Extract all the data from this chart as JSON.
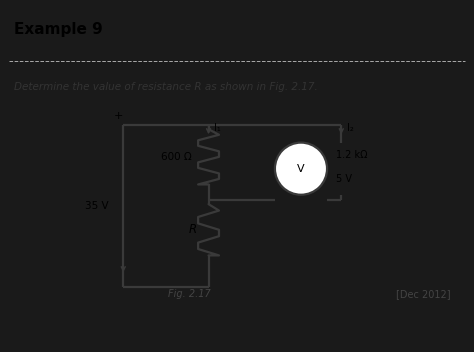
{
  "title": "Example 9",
  "subtitle": "Determine the value of resistance R as shown in Fig. 2.17.",
  "fig_label": "Fig. 2.17",
  "date_label": "[Dec 2012]",
  "top_bg": "#ffffff",
  "circuit_bg": "#d0d0d0",
  "bottom_bg": "#1a1a1a",
  "title_color": "#000000",
  "subtitle_color": "#333333",
  "line_color": "#3a3a3a",
  "line_width": 1.6,
  "resistor_600_label": "600 Ω",
  "resistor_R_label": "R",
  "voltmeter_text": "V",
  "voltmeter_detail_1": "1.2 kΩ",
  "voltmeter_detail_2": "5 V",
  "source_label": "35 V",
  "I1_label": "I₁",
  "I2_label": "I₂",
  "plus_label": "+",
  "fig_label_style": "italic",
  "title_fontsize": 11,
  "subtitle_fontsize": 7.5,
  "label_fontsize": 7.5,
  "small_fontsize": 7.0
}
